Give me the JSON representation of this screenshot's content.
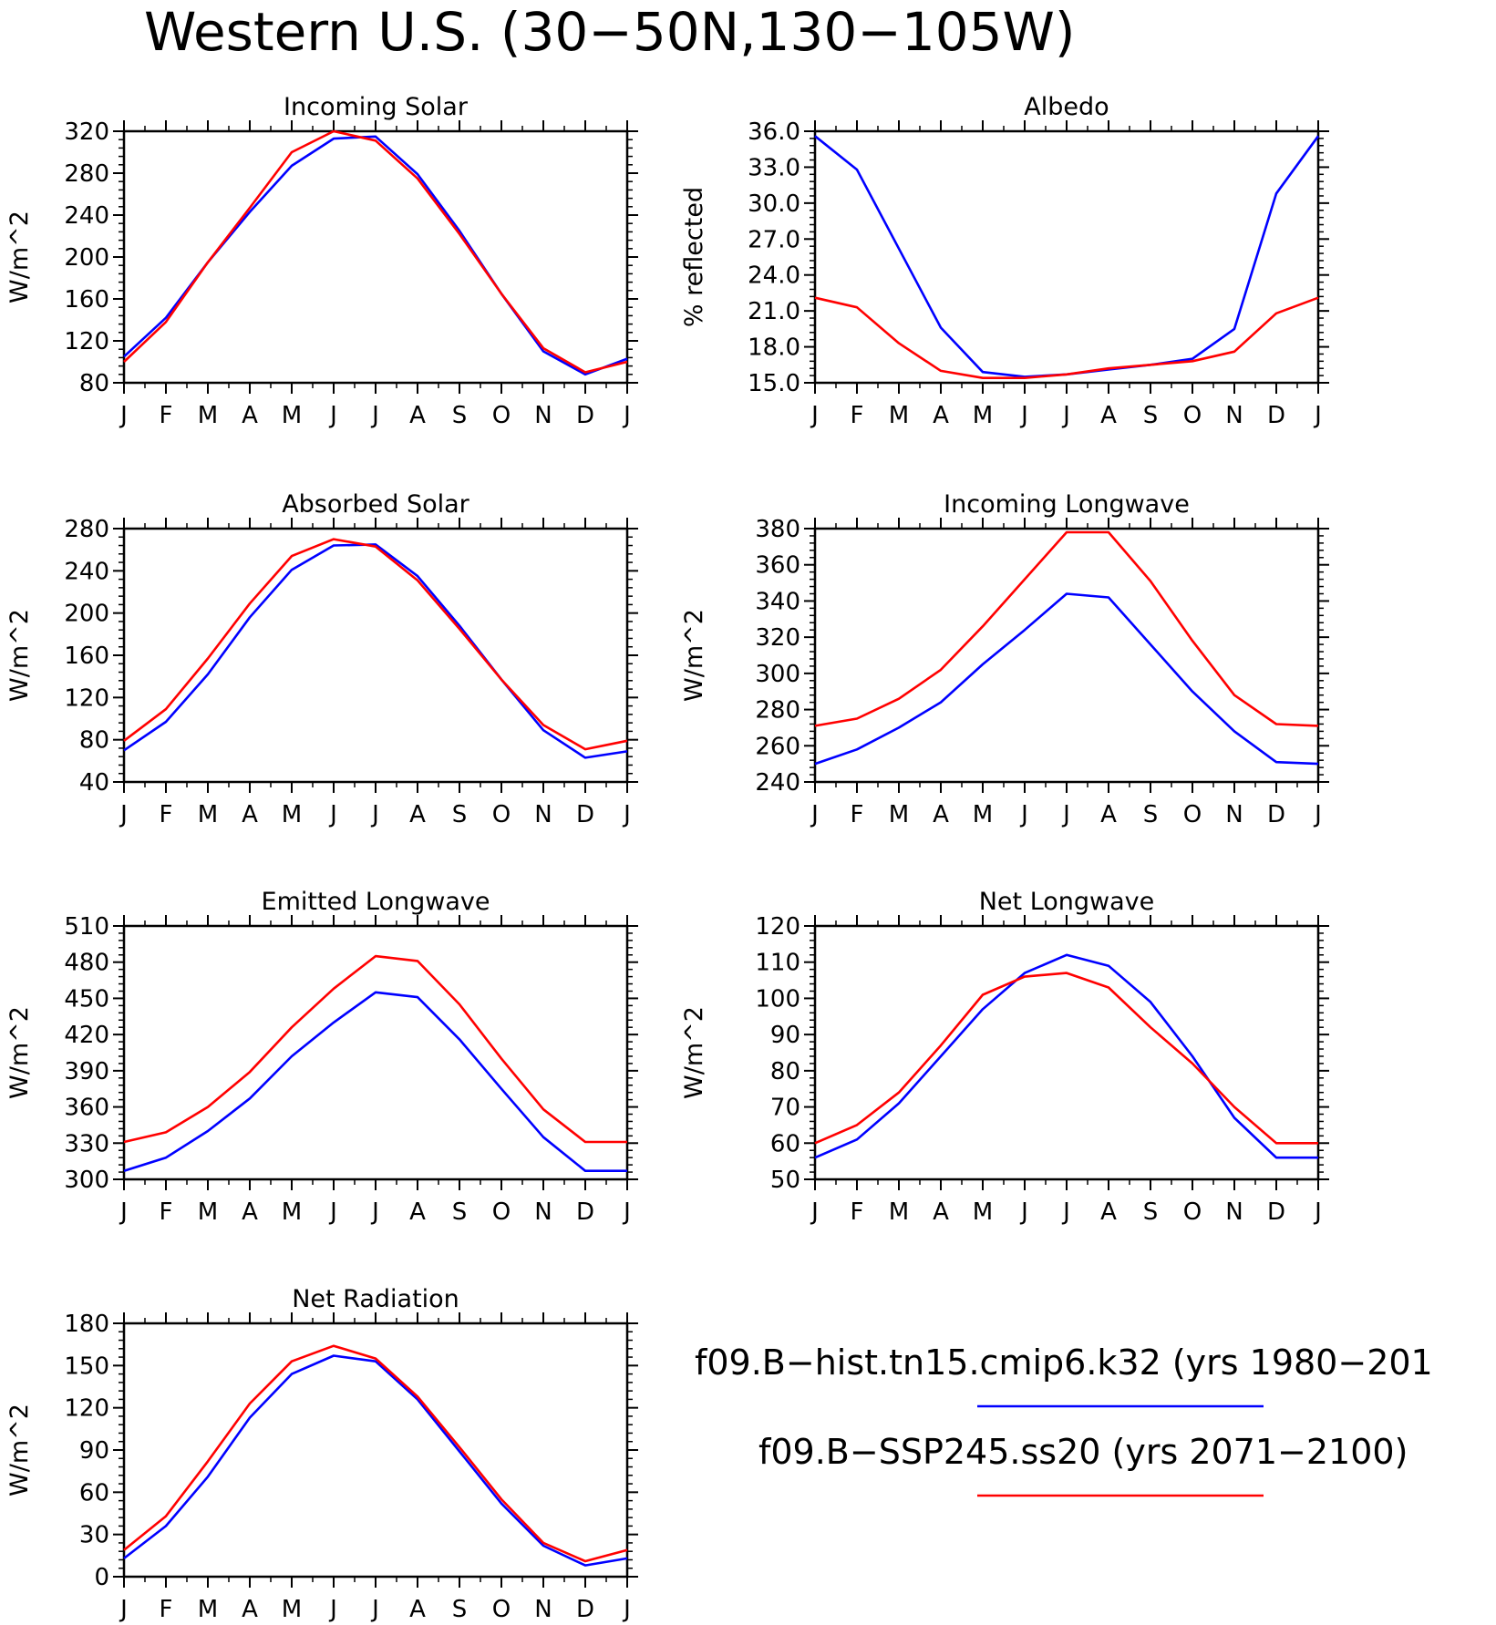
{
  "figure": {
    "title": "Western U.S. (30−50N,130−105W)"
  },
  "legend": [
    {
      "label": "f09.B−hist.tn15.cmip6.k32 (yrs 1980−201",
      "color": "#0000ff"
    },
    {
      "label": "f09.B−SSP245.ss20 (yrs 2071−2100)",
      "color": "#ff0000"
    }
  ],
  "chart_data": [
    {
      "type": "line",
      "title": "Incoming Solar",
      "ylabel": "W/m^2",
      "x": [
        "J",
        "F",
        "M",
        "A",
        "M",
        "J",
        "J",
        "A",
        "S",
        "O",
        "N",
        "D",
        "J"
      ],
      "ylim": [
        80,
        320
      ],
      "yticks": [
        80,
        120,
        160,
        200,
        240,
        280,
        320
      ],
      "ytick_labels": [
        "80",
        "120",
        "160",
        "200",
        "240",
        "280",
        "320"
      ],
      "series": [
        {
          "color": "#0000ff",
          "values": [
            105,
            142,
            195,
            243,
            287,
            313,
            315,
            279,
            225,
            165,
            110,
            88,
            103
          ]
        },
        {
          "color": "#ff0000",
          "values": [
            100,
            138,
            195,
            247,
            300,
            320,
            311,
            275,
            222,
            165,
            113,
            90,
            100
          ]
        }
      ]
    },
    {
      "type": "line",
      "title": "Albedo",
      "ylabel": "% reflected",
      "x": [
        "J",
        "F",
        "M",
        "A",
        "M",
        "J",
        "J",
        "A",
        "S",
        "O",
        "N",
        "D",
        "J"
      ],
      "ylim": [
        15,
        36
      ],
      "yticks": [
        15,
        18,
        21,
        24,
        27,
        30,
        33,
        36
      ],
      "ytick_labels": [
        "15.0",
        "18.0",
        "21.0",
        "24.0",
        "27.0",
        "30.0",
        "33.0",
        "36.0"
      ],
      "series": [
        {
          "color": "#0000ff",
          "values": [
            35.6,
            32.8,
            26.2,
            19.6,
            15.9,
            15.5,
            15.7,
            16.1,
            16.5,
            17.0,
            19.5,
            30.8,
            35.6
          ]
        },
        {
          "color": "#ff0000",
          "values": [
            22.1,
            21.3,
            18.3,
            16.0,
            15.4,
            15.4,
            15.7,
            16.2,
            16.5,
            16.8,
            17.6,
            20.8,
            22.1
          ]
        }
      ]
    },
    {
      "type": "line",
      "title": "Absorbed Solar",
      "ylabel": "W/m^2",
      "x": [
        "J",
        "F",
        "M",
        "A",
        "M",
        "J",
        "J",
        "A",
        "S",
        "O",
        "N",
        "D",
        "J"
      ],
      "ylim": [
        40,
        280
      ],
      "yticks": [
        40,
        80,
        120,
        160,
        200,
        240,
        280
      ],
      "ytick_labels": [
        "40",
        "80",
        "120",
        "160",
        "200",
        "240",
        "280"
      ],
      "series": [
        {
          "color": "#0000ff",
          "values": [
            70,
            97,
            142,
            196,
            241,
            264,
            265,
            235,
            188,
            137,
            89,
            63,
            69
          ]
        },
        {
          "color": "#ff0000",
          "values": [
            79,
            109,
            157,
            209,
            254,
            270,
            263,
            231,
            185,
            137,
            94,
            71,
            79
          ]
        }
      ]
    },
    {
      "type": "line",
      "title": "Incoming Longwave",
      "ylabel": "W/m^2",
      "x": [
        "J",
        "F",
        "M",
        "A",
        "M",
        "J",
        "J",
        "A",
        "S",
        "O",
        "N",
        "D",
        "J"
      ],
      "ylim": [
        240,
        380
      ],
      "yticks": [
        240,
        260,
        280,
        300,
        320,
        340,
        360,
        380
      ],
      "ytick_labels": [
        "240",
        "260",
        "280",
        "300",
        "320",
        "340",
        "360",
        "380"
      ],
      "series": [
        {
          "color": "#0000ff",
          "values": [
            250,
            258,
            270,
            284,
            305,
            324,
            344,
            342,
            316,
            290,
            268,
            251,
            250
          ]
        },
        {
          "color": "#ff0000",
          "values": [
            271,
            275,
            286,
            302,
            326,
            352,
            378,
            378,
            351,
            318,
            288,
            272,
            271
          ]
        }
      ]
    },
    {
      "type": "line",
      "title": "Emitted Longwave",
      "ylabel": "W/m^2",
      "x": [
        "J",
        "F",
        "M",
        "A",
        "M",
        "J",
        "J",
        "A",
        "S",
        "O",
        "N",
        "D",
        "J"
      ],
      "ylim": [
        300,
        510
      ],
      "yticks": [
        300,
        330,
        360,
        390,
        420,
        450,
        480,
        510
      ],
      "ytick_labels": [
        "300",
        "330",
        "360",
        "390",
        "420",
        "450",
        "480",
        "510"
      ],
      "series": [
        {
          "color": "#0000ff",
          "values": [
            307,
            318,
            340,
            367,
            402,
            430,
            455,
            451,
            416,
            375,
            335,
            307,
            307
          ]
        },
        {
          "color": "#ff0000",
          "values": [
            331,
            339,
            360,
            389,
            426,
            458,
            485,
            481,
            445,
            400,
            358,
            331,
            331
          ]
        }
      ]
    },
    {
      "type": "line",
      "title": "Net Longwave",
      "ylabel": "W/m^2",
      "x": [
        "J",
        "F",
        "M",
        "A",
        "M",
        "J",
        "J",
        "A",
        "S",
        "O",
        "N",
        "D",
        "J"
      ],
      "ylim": [
        50,
        120
      ],
      "yticks": [
        50,
        60,
        70,
        80,
        90,
        100,
        110,
        120
      ],
      "ytick_labels": [
        "50",
        "60",
        "70",
        "80",
        "90",
        "100",
        "110",
        "120"
      ],
      "series": [
        {
          "color": "#0000ff",
          "values": [
            56,
            61,
            71,
            84,
            97,
            107,
            112,
            109,
            99,
            84,
            67,
            56,
            56
          ]
        },
        {
          "color": "#ff0000",
          "values": [
            60,
            65,
            74,
            87,
            101,
            106,
            107,
            103,
            92,
            82,
            70,
            60,
            60
          ]
        }
      ]
    },
    {
      "type": "line",
      "title": "Net Radiation",
      "ylabel": "W/m^2",
      "x": [
        "J",
        "F",
        "M",
        "A",
        "M",
        "J",
        "J",
        "A",
        "S",
        "O",
        "N",
        "D",
        "J"
      ],
      "ylim": [
        0,
        180
      ],
      "yticks": [
        0,
        30,
        60,
        90,
        120,
        150,
        180
      ],
      "ytick_labels": [
        "0",
        "30",
        "60",
        "90",
        "120",
        "150",
        "180"
      ],
      "series": [
        {
          "color": "#0000ff",
          "values": [
            13,
            36,
            71,
            113,
            144,
            157,
            153,
            126,
            89,
            52,
            22,
            8,
            13
          ]
        },
        {
          "color": "#ff0000",
          "values": [
            19,
            43,
            82,
            123,
            153,
            164,
            155,
            128,
            92,
            55,
            24,
            11,
            19
          ]
        }
      ]
    }
  ]
}
